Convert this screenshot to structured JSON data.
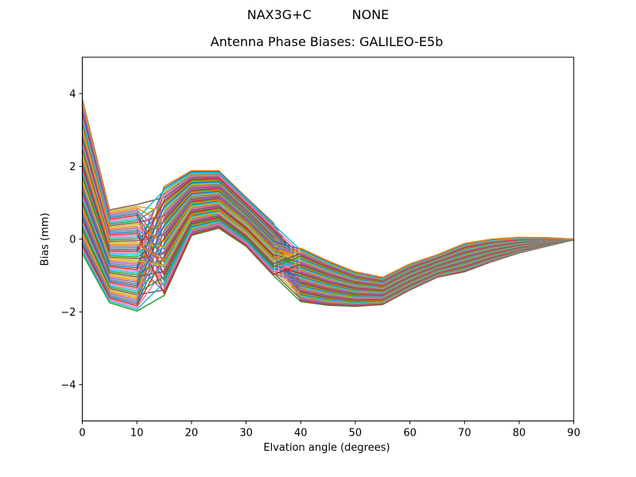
{
  "suptitle": "NAX3G+C          NONE",
  "chart_data": {
    "type": "line",
    "title": "Antenna Phase Biases: GALILEO-E5b",
    "xlabel": "Elvation angle (degrees)",
    "ylabel": "Bias (mm)",
    "xlim": [
      0,
      90
    ],
    "ylim": [
      -5,
      5
    ],
    "xticks": [
      0,
      10,
      20,
      30,
      40,
      50,
      60,
      70,
      80,
      90
    ],
    "xtick_labels": [
      "0",
      "10",
      "20",
      "30",
      "40",
      "50",
      "60",
      "70",
      "80",
      "90"
    ],
    "yticks": [
      -4,
      -2,
      0,
      2,
      4
    ],
    "ytick_labels": [
      "−4",
      "−2",
      "0",
      "2",
      "4"
    ],
    "grid": false,
    "legend": "none",
    "x": [
      0,
      5,
      10,
      15,
      20,
      25,
      30,
      35,
      40,
      45,
      50,
      55,
      60,
      65,
      70,
      75,
      80,
      85,
      90
    ],
    "band_high": [
      3.85,
      0.8,
      0.95,
      1.45,
      1.88,
      1.88,
      1.15,
      0.45,
      -0.25,
      -0.6,
      -0.9,
      -1.05,
      -0.68,
      -0.43,
      -0.12,
      0.0,
      0.05,
      0.04,
      0.0
    ],
    "band_low": [
      -0.4,
      -1.75,
      -1.98,
      -1.55,
      0.1,
      0.3,
      -0.2,
      -1.0,
      -1.72,
      -1.82,
      -1.85,
      -1.8,
      -1.4,
      -1.05,
      -0.9,
      -0.62,
      -0.38,
      -0.2,
      -0.02
    ],
    "n_series": 60,
    "zone_breaks": {
      "left_last_index": 2,
      "mid_last_index": 7
    },
    "series_order_left": [
      0,
      23,
      46,
      9,
      32,
      55,
      18,
      41,
      4,
      27,
      50,
      13,
      36,
      59,
      22,
      45,
      8,
      31,
      54,
      17,
      40,
      3,
      26,
      49,
      12,
      35,
      58,
      21,
      44,
      7,
      30,
      53,
      16,
      39,
      2,
      25,
      48,
      11,
      34,
      57,
      20,
      43,
      6,
      29,
      52,
      15,
      38,
      1,
      24,
      47,
      10,
      33,
      56,
      19,
      42,
      5,
      28,
      51,
      14,
      37
    ],
    "series_order_mid": [
      0,
      41,
      22,
      3,
      44,
      25,
      6,
      47,
      28,
      9,
      50,
      31,
      12,
      53,
      34,
      15,
      56,
      37,
      18,
      59,
      40,
      21,
      2,
      43,
      24,
      5,
      46,
      27,
      8,
      49,
      30,
      11,
      52,
      33,
      14,
      55,
      36,
      17,
      58,
      39,
      20,
      1,
      42,
      23,
      4,
      45,
      26,
      7,
      48,
      29,
      10,
      51,
      32,
      13,
      54,
      35,
      16,
      57,
      38,
      19
    ],
    "color_cycle": [
      "#1f77b4",
      "#ff7f0e",
      "#2ca02c",
      "#d62728",
      "#9467bd",
      "#8c564b",
      "#e377c2",
      "#7f7f7f",
      "#bcbd22",
      "#17becf"
    ],
    "color_offset": 2,
    "line_width": 1.5,
    "axes_color": "#000000"
  }
}
